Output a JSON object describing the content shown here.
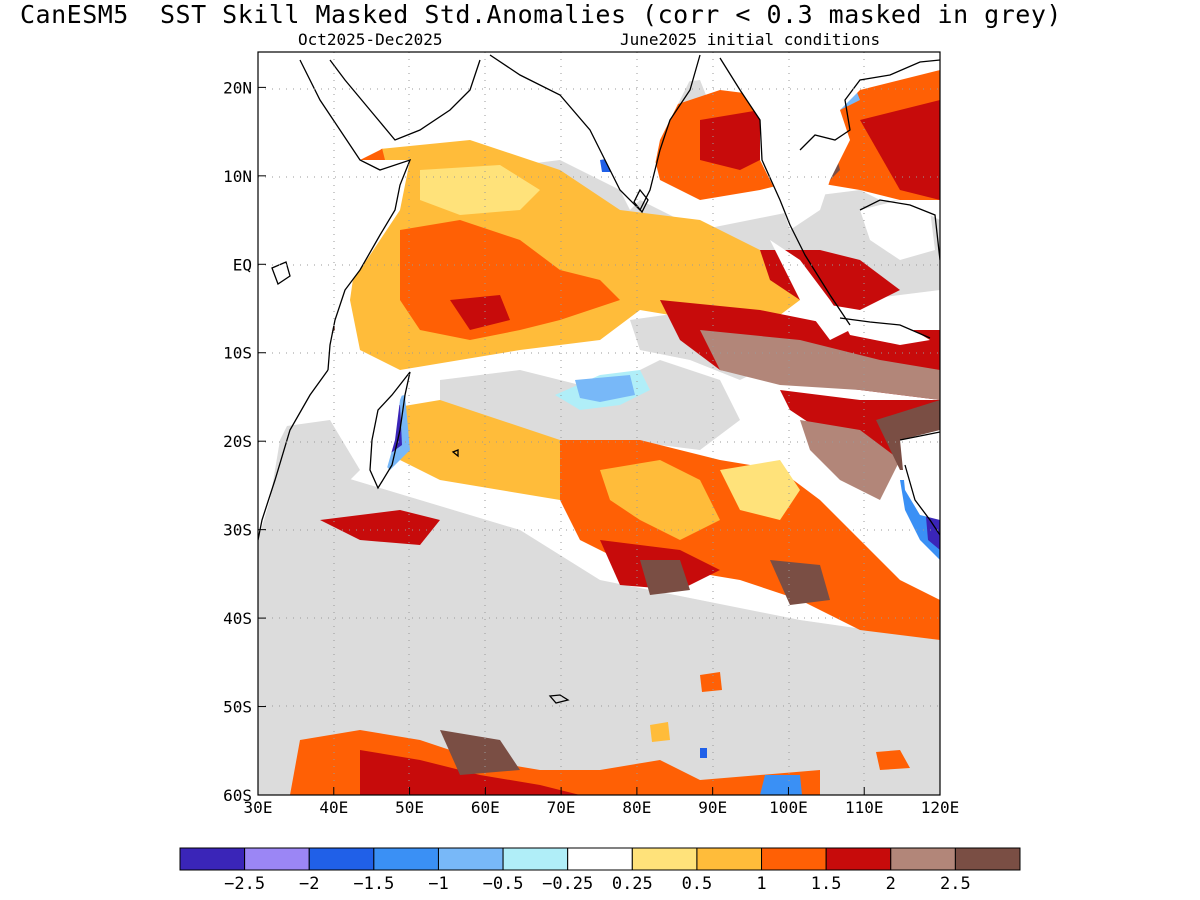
{
  "header": {
    "title": "CanESM5  SST Skill Masked Std.Anomalies (corr < 0.3 masked in grey)",
    "period": "Oct2025-Dec2025",
    "init": "June2025 initial conditions"
  },
  "map": {
    "lon_range": [
      30,
      120
    ],
    "lat_range": [
      -60,
      24
    ],
    "lon_ticks": [
      "30E",
      "40E",
      "50E",
      "60E",
      "70E",
      "80E",
      "90E",
      "100E",
      "110E",
      "120E"
    ],
    "lat_ticks": [
      "20N",
      "10N",
      "EQ",
      "10S",
      "20S",
      "30S",
      "40S",
      "50S",
      "60S"
    ],
    "colors": {
      "mask_grey": "#dcdcdc",
      "land": "#ffffff",
      "coast": "#000000",
      "grid": "#999999"
    }
  },
  "colorbar": {
    "colors": [
      "#3a25b8",
      "#9b86f5",
      "#2060e8",
      "#3a90f5",
      "#78b8f8",
      "#b0eef8",
      "#ffffff",
      "#ffe27a",
      "#ffbc3a",
      "#ff6005",
      "#c70b0b",
      "#b28679",
      "#7a4e44"
    ],
    "labels": [
      "-2.5",
      "-2",
      "-1.5",
      "-1",
      "-0.5",
      "-0.25",
      "0.25",
      "0.5",
      "1",
      "1.5",
      "2",
      "2.5"
    ]
  }
}
